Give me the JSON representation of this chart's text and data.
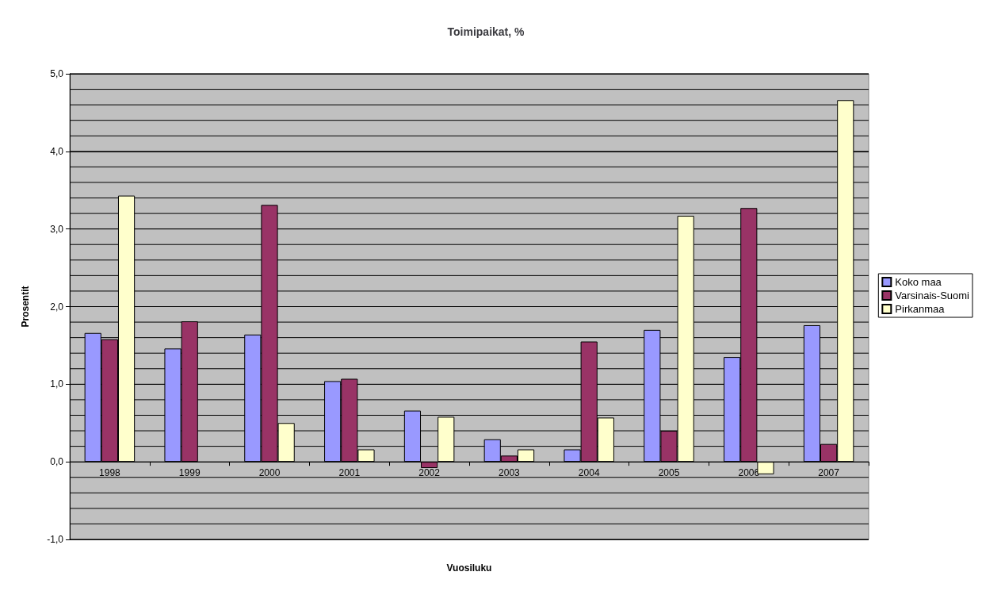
{
  "chart_data": {
    "type": "bar",
    "title": "Toimipaikat, %",
    "xlabel": "Vuosiluku",
    "ylabel": "Prosentit",
    "categories": [
      "1998",
      "1999",
      "2000",
      "2001",
      "2002",
      "2003",
      "2004",
      "2005",
      "2006",
      "2007"
    ],
    "series": [
      {
        "name": "Koko maa",
        "color": "#9999ff",
        "values": [
          1.66,
          1.46,
          1.64,
          1.04,
          0.66,
          0.29,
          0.16,
          1.7,
          1.35,
          1.76
        ]
      },
      {
        "name": "Varsinais-Suomi",
        "color": "#993366",
        "values": [
          1.58,
          1.81,
          3.31,
          1.07,
          -0.08,
          0.08,
          1.55,
          0.4,
          3.27,
          0.23
        ]
      },
      {
        "name": "Pirkanmaa",
        "color": "#ffffcc",
        "values": [
          3.43,
          null,
          0.5,
          0.16,
          0.58,
          0.16,
          0.57,
          3.17,
          -0.16,
          4.66
        ]
      }
    ],
    "ylim": [
      -1,
      5
    ],
    "yticks": [
      {
        "value": -1,
        "label": "-1,0"
      },
      {
        "value": -0.8,
        "label": null
      },
      {
        "value": -0.6,
        "label": null
      },
      {
        "value": -0.4,
        "label": null
      },
      {
        "value": -0.2,
        "label": null
      },
      {
        "value": 0,
        "label": "0,0"
      },
      {
        "value": 0.2,
        "label": null
      },
      {
        "value": 0.4,
        "label": null
      },
      {
        "value": 0.6,
        "label": null
      },
      {
        "value": 0.8,
        "label": null
      },
      {
        "value": 1,
        "label": "1,0"
      },
      {
        "value": 1.2,
        "label": null
      },
      {
        "value": 1.4,
        "label": null
      },
      {
        "value": 1.6,
        "label": null
      },
      {
        "value": 1.8,
        "label": null
      },
      {
        "value": 2,
        "label": "2,0"
      },
      {
        "value": 2.2,
        "label": null
      },
      {
        "value": 2.4,
        "label": null
      },
      {
        "value": 2.6,
        "label": null
      },
      {
        "value": 2.8,
        "label": null
      },
      {
        "value": 3,
        "label": "3,0"
      },
      {
        "value": 3.2,
        "label": null
      },
      {
        "value": 3.4,
        "label": null
      },
      {
        "value": 3.6,
        "label": null
      },
      {
        "value": 3.8,
        "label": null
      },
      {
        "value": 4,
        "label": "4,0"
      },
      {
        "value": 4.2,
        "label": null
      },
      {
        "value": 4.4,
        "label": null
      },
      {
        "value": 4.6,
        "label": null
      },
      {
        "value": 4.8,
        "label": null
      },
      {
        "value": 5,
        "label": "5,0"
      }
    ],
    "grid": "y",
    "legend": "right"
  }
}
